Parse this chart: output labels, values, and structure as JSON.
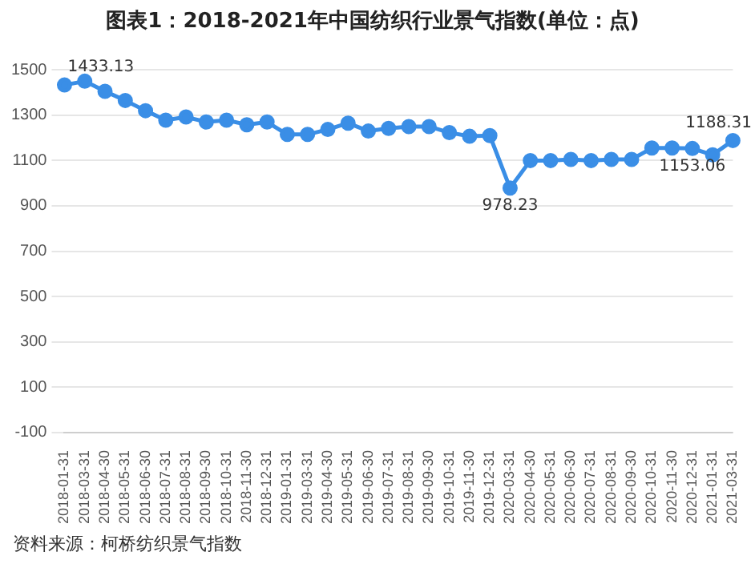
{
  "chart_data": {
    "type": "line",
    "title": "图表1：2018-2021年中国纺织行业景气指数(单位：点)",
    "categories": [
      "2018-01-31",
      "2018-03-31",
      "2018-04-30",
      "2018-05-31",
      "2018-06-30",
      "2018-07-31",
      "2018-08-31",
      "2018-09-30",
      "2018-10-31",
      "2018-11-30",
      "2018-12-31",
      "2019-01-31",
      "2019-03-31",
      "2019-04-30",
      "2019-05-31",
      "2019-06-30",
      "2019-07-31",
      "2019-08-31",
      "2019-09-30",
      "2019-10-31",
      "2019-11-30",
      "2019-12-31",
      "2020-03-31",
      "2020-04-30",
      "2020-05-31",
      "2020-06-30",
      "2020-07-31",
      "2020-08-31",
      "2020-09-30",
      "2020-10-31",
      "2020-11-30",
      "2020-12-31",
      "2021-01-31",
      "2021-03-31"
    ],
    "series": [
      {
        "color": "#3a8ee6",
        "values": [
          1433.13,
          1450,
          1405,
          1365,
          1320,
          1278,
          1292,
          1270,
          1278,
          1258,
          1270,
          1215,
          1215,
          1237,
          1265,
          1230,
          1242,
          1250,
          1250,
          1223,
          1207,
          1210,
          978.23,
          1100,
          1100,
          1105,
          1100,
          1105,
          1105,
          1155,
          1155,
          1153.06,
          1125,
          1188.31
        ],
        "value_labels": [
          "1433.13",
          null,
          null,
          null,
          null,
          null,
          null,
          null,
          null,
          null,
          null,
          null,
          null,
          null,
          null,
          null,
          null,
          null,
          null,
          null,
          null,
          null,
          "978.23",
          null,
          null,
          null,
          null,
          null,
          null,
          null,
          null,
          "1153.06",
          null,
          "1188.31"
        ]
      }
    ],
    "ylim": [
      -100,
      1500
    ],
    "yticks": [
      -100,
      100,
      300,
      500,
      700,
      900,
      1100,
      1300,
      1500
    ],
    "grid": "y",
    "legend": false,
    "marker": "circle",
    "line_style": "solid",
    "annotations": [
      "资料来源：柯桥纺织景气指数"
    ]
  }
}
